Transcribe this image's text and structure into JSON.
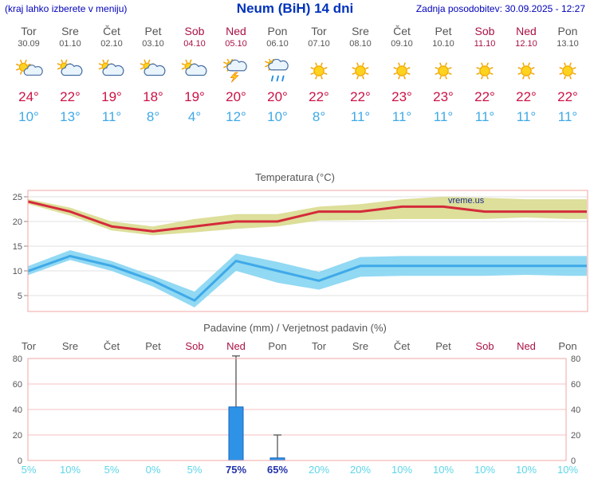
{
  "header": {
    "left_note": "(kraj lahko izberete v meniju)",
    "title": "Neum (BiH) 14 dni",
    "updated": "Zadnja posodobitev: 30.09.2025 - 12:27"
  },
  "days": [
    {
      "name": "Tor",
      "date": "30.09",
      "weekend": false,
      "icon": "sun-cloud",
      "tmax": "24°",
      "tmin": "10°"
    },
    {
      "name": "Sre",
      "date": "01.10",
      "weekend": false,
      "icon": "cloud-sun",
      "tmax": "22°",
      "tmin": "13°"
    },
    {
      "name": "Čet",
      "date": "02.10",
      "weekend": false,
      "icon": "cloud-sun",
      "tmax": "19°",
      "tmin": "11°"
    },
    {
      "name": "Pet",
      "date": "03.10",
      "weekend": false,
      "icon": "cloud-sun",
      "tmax": "18°",
      "tmin": "8°"
    },
    {
      "name": "Sob",
      "date": "04.10",
      "weekend": true,
      "icon": "cloud-sun",
      "tmax": "19°",
      "tmin": "4°"
    },
    {
      "name": "Ned",
      "date": "05.10",
      "weekend": true,
      "icon": "thunder",
      "tmax": "20°",
      "tmin": "12°"
    },
    {
      "name": "Pon",
      "date": "06.10",
      "weekend": false,
      "icon": "rain-sun",
      "tmax": "20°",
      "tmin": "10°"
    },
    {
      "name": "Tor",
      "date": "07.10",
      "weekend": false,
      "icon": "sunny",
      "tmax": "22°",
      "tmin": "8°"
    },
    {
      "name": "Sre",
      "date": "08.10",
      "weekend": false,
      "icon": "sunny",
      "tmax": "22°",
      "tmin": "11°"
    },
    {
      "name": "Čet",
      "date": "09.10",
      "weekend": false,
      "icon": "sunny",
      "tmax": "23°",
      "tmin": "11°"
    },
    {
      "name": "Pet",
      "date": "10.10",
      "weekend": false,
      "icon": "sunny",
      "tmax": "23°",
      "tmin": "11°"
    },
    {
      "name": "Sob",
      "date": "11.10",
      "weekend": true,
      "icon": "sunny",
      "tmax": "22°",
      "tmin": "11°"
    },
    {
      "name": "Ned",
      "date": "12.10",
      "weekend": true,
      "icon": "sunny",
      "tmax": "22°",
      "tmin": "11°"
    },
    {
      "name": "Pon",
      "date": "13.10",
      "weekend": false,
      "icon": "sunny",
      "tmax": "22°",
      "tmin": "11°"
    }
  ],
  "chart_data": [
    {
      "type": "line",
      "title": "Temperatura (°C)",
      "x_labels": [
        "Tor",
        "Sre",
        "Čet",
        "Pet",
        "Sob",
        "Ned",
        "Pon",
        "Tor",
        "Sre",
        "Čet",
        "Pet",
        "Sob",
        "Ned",
        "Pon"
      ],
      "ylim": [
        1.5,
        26.5
      ],
      "yticks": [
        5,
        10,
        15,
        20,
        25
      ],
      "grid": true,
      "watermark": "vreme.us",
      "series": [
        {
          "name": "max-temp",
          "color": "#d42b3a",
          "values": [
            24,
            22,
            19,
            18,
            19,
            20,
            20,
            22,
            22,
            23,
            23,
            22,
            22,
            22
          ]
        },
        {
          "name": "min-temp",
          "color": "#3fa9e8",
          "values": [
            10,
            13,
            11,
            8,
            4,
            12,
            10,
            8,
            11,
            11,
            11,
            11,
            11,
            11
          ]
        }
      ],
      "bands": [
        {
          "name": "max-temp-range",
          "color": "#d9db8f",
          "hi": [
            24.5,
            22.8,
            20.0,
            19.0,
            20.5,
            21.5,
            21.5,
            23.0,
            23.5,
            24.5,
            25.0,
            24.8,
            24.5,
            24.5
          ],
          "lo": [
            23.5,
            21.2,
            18.2,
            17.2,
            17.8,
            18.5,
            19.0,
            20.2,
            20.3,
            20.5,
            20.5,
            20.5,
            20.8,
            20.5
          ]
        },
        {
          "name": "min-temp-range",
          "color": "#86d5f2",
          "hi": [
            11.0,
            14.2,
            12.0,
            9.0,
            5.8,
            13.5,
            11.8,
            9.8,
            12.8,
            13.0,
            13.0,
            13.0,
            13.0,
            13.0
          ],
          "lo": [
            9.2,
            12.2,
            10.0,
            6.8,
            2.6,
            10.0,
            7.6,
            6.2,
            8.8,
            9.0,
            9.0,
            9.0,
            9.2,
            9.0
          ]
        }
      ]
    },
    {
      "type": "bar",
      "title": "Padavine (mm) / Verjetnost padavin (%)",
      "x_labels": [
        "Tor",
        "Sre",
        "Čet",
        "Pet",
        "Sob",
        "Ned",
        "Pon",
        "Tor",
        "Sre",
        "Čet",
        "Pet",
        "Sob",
        "Ned",
        "Pon"
      ],
      "ylim": [
        0,
        80
      ],
      "yticks": [
        0,
        20,
        40,
        60,
        80
      ],
      "values": [
        0,
        0,
        0,
        0,
        0,
        42,
        2,
        0,
        0,
        0,
        0,
        0,
        0,
        0
      ],
      "whisker_hi": [
        0,
        0,
        0,
        0,
        0,
        82,
        20,
        0,
        0,
        0,
        0,
        0,
        0,
        0
      ],
      "probabilities": [
        5,
        10,
        5,
        0,
        5,
        75,
        65,
        20,
        20,
        10,
        10,
        10,
        10,
        10
      ],
      "highlight_prob_indices": [
        5,
        6
      ]
    }
  ],
  "colors": {
    "accent_blue": "#0000bb",
    "title_blue": "#0033bb",
    "weekend_red": "#aa1144",
    "tmax_red": "#cc1144",
    "tmin_blue": "#3fa9e8",
    "frame_pink": "#f3a6a6",
    "grid_pink": "#f6c0c0",
    "bar_blue": "#2e93e6",
    "prob_cyan": "#5cd6e8",
    "prob_dark": "#2233aa"
  }
}
